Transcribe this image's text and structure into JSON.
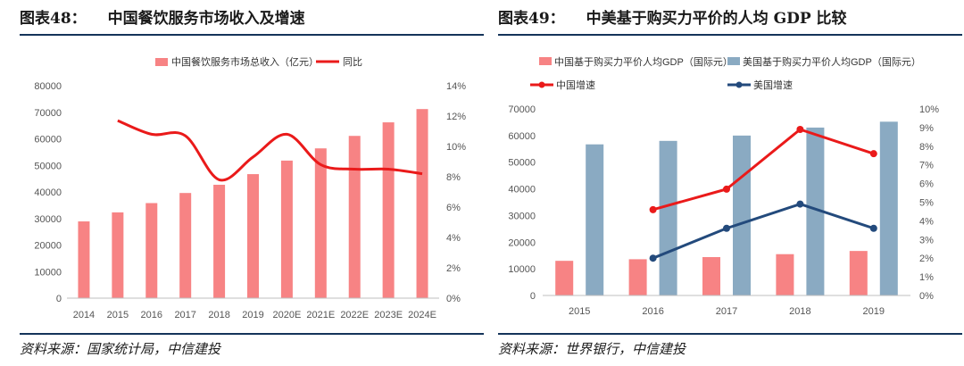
{
  "charts": [
    {
      "title_num": "图表48：",
      "title_text": "中国餐饮服务市场收入及增速",
      "source": "资料来源：国家统计局，中信建投",
      "colors": {
        "bar": "#f78384",
        "line": "#ea1a1a"
      }
    },
    {
      "title_num": "图表49：",
      "title_text": "中美基于购买力平价的人均 GDP 比较",
      "source": "资料来源：世界银行，中信建投",
      "colors": {
        "china_bar": "#f78384",
        "us_bar": "#8aaac2",
        "china_line": "#ea1a1a",
        "us_line": "#234a7c"
      }
    }
  ],
  "chart_data": [
    {
      "type": "bar",
      "title": "中国餐饮服务市场收入及增速",
      "categories": [
        "2014",
        "2015",
        "2016",
        "2017",
        "2018",
        "2019",
        "2020E",
        "2021E",
        "2022E",
        "2023E",
        "2024E"
      ],
      "series": [
        {
          "name": "中国餐饮服务市场总收入（亿元）",
          "type": "bar",
          "axis": "left",
          "values": [
            28900,
            32300,
            35800,
            39600,
            42700,
            46700,
            51800,
            56400,
            61100,
            66200,
            71200
          ]
        },
        {
          "name": "同比",
          "type": "line",
          "axis": "right",
          "values": [
            null,
            0.117,
            0.108,
            0.107,
            0.078,
            0.093,
            0.108,
            0.088,
            0.085,
            0.085,
            0.082
          ]
        }
      ],
      "yleft": {
        "lim": [
          0,
          80000
        ],
        "ticks": [
          "0",
          "10000",
          "20000",
          "30000",
          "40000",
          "50000",
          "60000",
          "70000",
          "80000"
        ]
      },
      "yright": {
        "lim": [
          0,
          0.14
        ],
        "ticks": [
          "0%",
          "2%",
          "4%",
          "6%",
          "8%",
          "10%",
          "12%",
          "14%"
        ]
      },
      "legend": "top-center"
    },
    {
      "type": "bar",
      "title": "中美基于购买力平价的人均 GDP 比较",
      "categories": [
        "2015",
        "2016",
        "2017",
        "2018",
        "2019"
      ],
      "series": [
        {
          "name": "中国基于购买力平价人均GDP（国际元）",
          "type": "bar",
          "axis": "left",
          "values": [
            13000,
            13600,
            14400,
            15500,
            16700
          ]
        },
        {
          "name": "美国基于购买力平价人均GDP（国际元）",
          "type": "bar",
          "axis": "left",
          "values": [
            56700,
            58000,
            60000,
            63000,
            65200
          ]
        },
        {
          "name": "中国增速",
          "type": "line",
          "axis": "right",
          "values": [
            null,
            0.046,
            0.057,
            0.089,
            0.076
          ]
        },
        {
          "name": "美国增速",
          "type": "line",
          "axis": "right",
          "values": [
            null,
            0.02,
            0.036,
            0.049,
            0.036
          ]
        }
      ],
      "yleft": {
        "lim": [
          0,
          70000
        ],
        "ticks": [
          "0",
          "10000",
          "20000",
          "30000",
          "40000",
          "50000",
          "60000",
          "70000"
        ]
      },
      "yright": {
        "lim": [
          0,
          0.1
        ],
        "ticks": [
          "0%",
          "1%",
          "2%",
          "3%",
          "4%",
          "5%",
          "6%",
          "7%",
          "8%",
          "9%",
          "10%"
        ]
      },
      "legend": "top-left"
    }
  ]
}
